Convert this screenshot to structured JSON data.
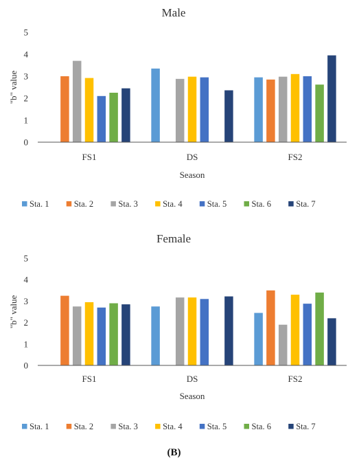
{
  "caption": "(B)",
  "colors": [
    "#5b9bd5",
    "#ed7d31",
    "#a5a5a5",
    "#ffc000",
    "#4472c4",
    "#70ad47",
    "#264478"
  ],
  "chart_data": [
    {
      "type": "bar",
      "title": "Male",
      "xlabel": "Season",
      "ylabel": "\"b\" value",
      "ylim": [
        0,
        5
      ],
      "yticks": [
        "0",
        "1",
        "2",
        "3",
        "4",
        "5"
      ],
      "categories": [
        "FS1",
        "DS",
        "FS2"
      ],
      "legend_position": "bottom",
      "series": [
        {
          "name": "Sta. 1",
          "values": [
            null,
            3.35,
            2.95
          ]
        },
        {
          "name": "Sta. 2",
          "values": [
            3.0,
            null,
            2.85
          ]
        },
        {
          "name": "Sta. 3",
          "values": [
            3.7,
            2.88,
            2.98
          ]
        },
        {
          "name": "Sta. 4",
          "values": [
            2.92,
            2.98,
            3.1
          ]
        },
        {
          "name": "Sta. 5",
          "values": [
            2.1,
            2.95,
            3.0
          ]
        },
        {
          "name": "Sta. 6",
          "values": [
            2.25,
            null,
            2.62
          ]
        },
        {
          "name": "Sta. 7",
          "values": [
            2.45,
            2.36,
            3.95
          ]
        }
      ]
    },
    {
      "type": "bar",
      "title": "Female",
      "xlabel": "Season",
      "ylabel": "\"b\" value",
      "ylim": [
        0,
        5
      ],
      "yticks": [
        "0",
        "1",
        "2",
        "3",
        "4",
        "5"
      ],
      "categories": [
        "FS1",
        "DS",
        "FS2"
      ],
      "legend_position": "bottom",
      "series": [
        {
          "name": "Sta. 1",
          "values": [
            null,
            2.75,
            2.45
          ]
        },
        {
          "name": "Sta. 2",
          "values": [
            3.25,
            null,
            3.5
          ]
        },
        {
          "name": "Sta. 3",
          "values": [
            2.75,
            3.17,
            1.9
          ]
        },
        {
          "name": "Sta. 4",
          "values": [
            2.95,
            3.17,
            3.3
          ]
        },
        {
          "name": "Sta. 5",
          "values": [
            2.7,
            3.1,
            2.88
          ]
        },
        {
          "name": "Sta. 6",
          "values": [
            2.9,
            null,
            3.4
          ]
        },
        {
          "name": "Sta. 7",
          "values": [
            2.85,
            3.22,
            2.2
          ]
        }
      ]
    }
  ]
}
